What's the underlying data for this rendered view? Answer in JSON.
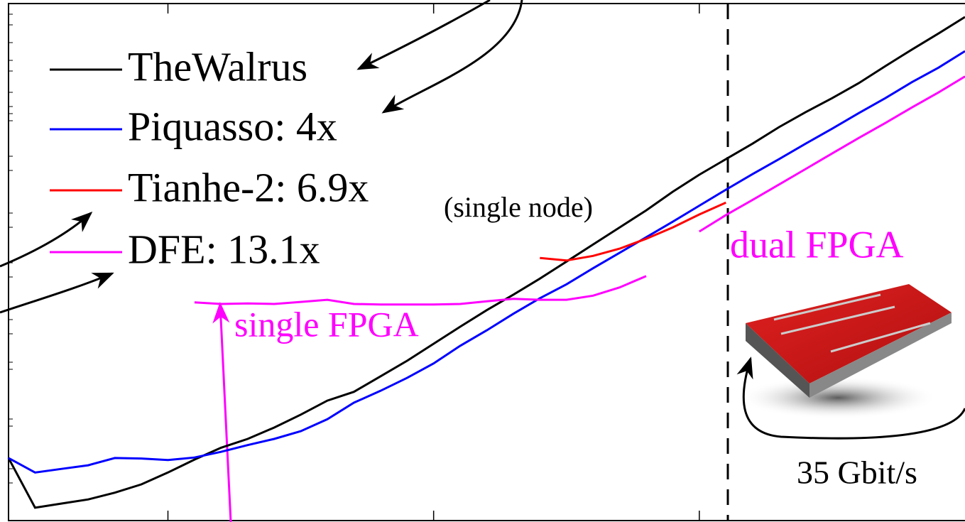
{
  "chart_data": {
    "type": "line",
    "x": [
      0,
      1,
      2,
      3,
      4,
      5,
      6,
      7,
      8,
      9,
      10,
      11,
      12,
      13,
      14,
      15,
      16,
      17,
      18,
      19,
      20,
      21,
      22,
      23,
      24,
      25,
      26,
      27,
      28,
      29,
      30,
      31,
      32,
      33,
      34,
      35,
      36
    ],
    "xlim": [
      0,
      36
    ],
    "ylim": [
      0,
      100
    ],
    "xticks": [
      6,
      16,
      26
    ],
    "series": [
      {
        "name": "TheWalrus",
        "color": "#000000",
        "values": [
          12.1,
          2.5,
          3.3,
          4.1,
          5.4,
          7.0,
          9.3,
          11.8,
          14.1,
          15.8,
          18.0,
          20.5,
          23.2,
          24.9,
          27.9,
          30.9,
          34.2,
          37.5,
          40.7,
          43.7,
          46.8,
          50.1,
          53.4,
          56.7,
          60.0,
          63.6,
          66.9,
          69.9,
          72.9,
          76.1,
          79.0,
          81.7,
          84.6,
          87.9,
          91.1,
          94.2,
          97.4
        ]
      },
      {
        "name": "Piquasso: 4x",
        "color": "#0000ff",
        "values": [
          12.1,
          9.3,
          10.0,
          10.7,
          12.1,
          12.0,
          11.7,
          12.2,
          13.3,
          14.6,
          15.8,
          17.3,
          19.6,
          22.8,
          25.1,
          27.6,
          30.4,
          33.8,
          36.8,
          40.0,
          43.0,
          45.7,
          48.8,
          51.8,
          54.8,
          57.8,
          60.9,
          64.0,
          67.0,
          69.9,
          72.9,
          75.8,
          78.8,
          81.7,
          84.8,
          87.6,
          90.8
        ]
      },
      {
        "name": "Tianhe-2: 6.9x",
        "color": "#ff0000",
        "values": [
          null,
          null,
          null,
          null,
          null,
          null,
          null,
          null,
          null,
          null,
          null,
          null,
          null,
          null,
          null,
          null,
          null,
          null,
          null,
          null,
          50.8,
          50.3,
          51.2,
          52.6,
          54.5,
          56.7,
          59.2,
          61.5,
          null,
          null,
          null,
          null,
          null,
          null,
          null,
          null,
          null
        ]
      },
      {
        "name": "DFE: 13.1x",
        "color": "#ff00ff",
        "values": [
          null,
          null,
          null,
          null,
          null,
          null,
          null,
          42.2,
          41.9,
          42.0,
          41.9,
          42.3,
          42.7,
          41.9,
          41.8,
          41.8,
          41.8,
          41.9,
          42.4,
          42.9,
          42.7,
          42.7,
          43.5,
          45.1,
          47.3,
          null,
          55.9,
          59.1,
          62.0,
          65.0,
          68.0,
          71.0,
          74.0,
          76.9,
          79.9,
          82.8,
          85.9
        ]
      }
    ],
    "legend_note": "(single node)",
    "annotations": [
      "single FPGA",
      "dual FPGA",
      "35 Gbit/s"
    ]
  }
}
